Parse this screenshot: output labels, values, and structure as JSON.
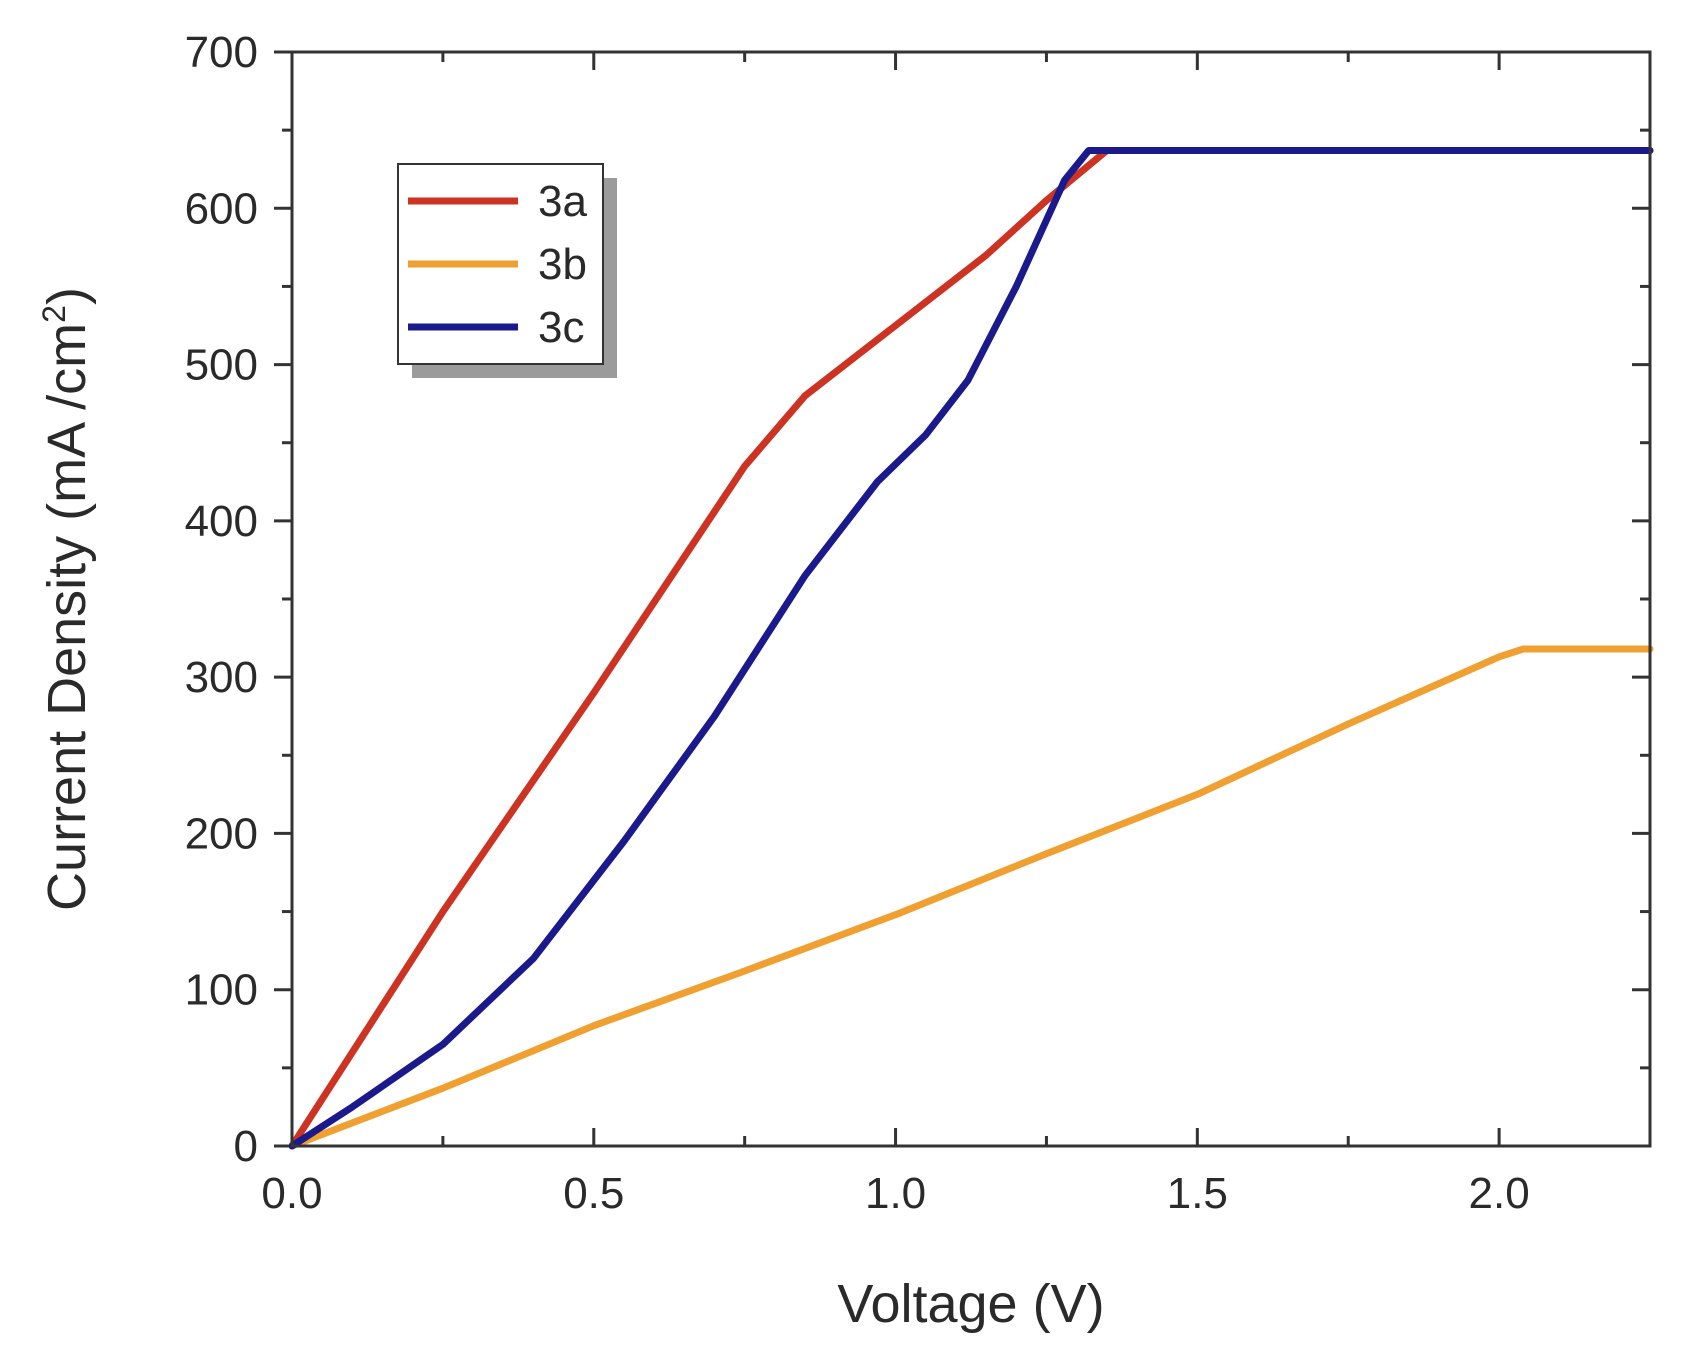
{
  "chart_data": {
    "type": "line",
    "title": "",
    "xlabel": "Voltage (V)",
    "ylabel_main": "Current Density (mA /cm",
    "ylabel_sup": "2",
    "ylabel_end": ")",
    "xlim": [
      0,
      2.25
    ],
    "ylim": [
      0,
      700
    ],
    "x_ticks": [
      0.0,
      0.5,
      1.0,
      1.5,
      2.0
    ],
    "x_tick_labels": [
      "0.0",
      "0.5",
      "1.0",
      "1.5",
      "2.0"
    ],
    "x_minor_ticks": [
      0.25,
      0.75,
      1.25,
      1.75
    ],
    "y_ticks": [
      0,
      100,
      200,
      300,
      400,
      500,
      600,
      700
    ],
    "y_tick_labels": [
      "0",
      "100",
      "200",
      "300",
      "400",
      "500",
      "600",
      "700"
    ],
    "y_minor_ticks": [
      50,
      150,
      250,
      350,
      450,
      550,
      650
    ],
    "grid": false,
    "legend_position": "top-left",
    "series": [
      {
        "name": "3a",
        "color": "#cc3322",
        "x": [
          0,
          0.25,
          0.5,
          0.75,
          0.85,
          1.0,
          1.15,
          1.25,
          1.35,
          2.25
        ],
        "y": [
          0,
          150,
          290,
          435,
          480,
          525,
          570,
          605,
          637,
          637
        ]
      },
      {
        "name": "3b",
        "color": "#f0a030",
        "x": [
          0,
          0.25,
          0.5,
          0.75,
          1.0,
          1.25,
          1.5,
          1.75,
          2.0,
          2.04,
          2.25
        ],
        "y": [
          0,
          37,
          77,
          112,
          148,
          187,
          225,
          270,
          313,
          318,
          318
        ]
      },
      {
        "name": "3c",
        "color": "#1a1a8c",
        "x": [
          0,
          0.1,
          0.25,
          0.4,
          0.55,
          0.7,
          0.85,
          0.97,
          1.05,
          1.12,
          1.2,
          1.28,
          1.32,
          2.25
        ],
        "y": [
          0,
          25,
          65,
          120,
          195,
          275,
          365,
          425,
          455,
          490,
          550,
          618,
          637,
          637
        ]
      }
    ]
  }
}
